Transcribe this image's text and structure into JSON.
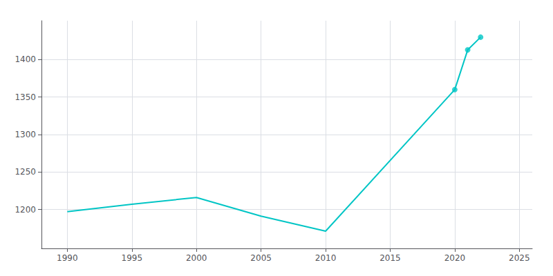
{
  "chart_data": {
    "type": "line",
    "series": [
      {
        "type": "line",
        "color": "#00C5C5",
        "marker": "none",
        "x": [
          1990,
          1995,
          2000,
          2005,
          2010,
          2020,
          2021,
          2022
        ],
        "values": [
          1197,
          1207,
          1216,
          1191,
          1171,
          1360,
          1413,
          1430
        ]
      },
      {
        "type": "scatter",
        "color": "#00C5C5",
        "marker": "circle",
        "x": [
          2020,
          2021,
          2022
        ],
        "values": [
          1360,
          1413,
          1430
        ]
      }
    ],
    "xlim": [
      1988,
      2026
    ],
    "ylim": [
      1148,
      1452
    ],
    "xticks": [
      1990,
      1995,
      2000,
      2005,
      2010,
      2015,
      2020,
      2025
    ],
    "yticks": [
      1200,
      1250,
      1300,
      1350,
      1400
    ],
    "grid": true
  }
}
